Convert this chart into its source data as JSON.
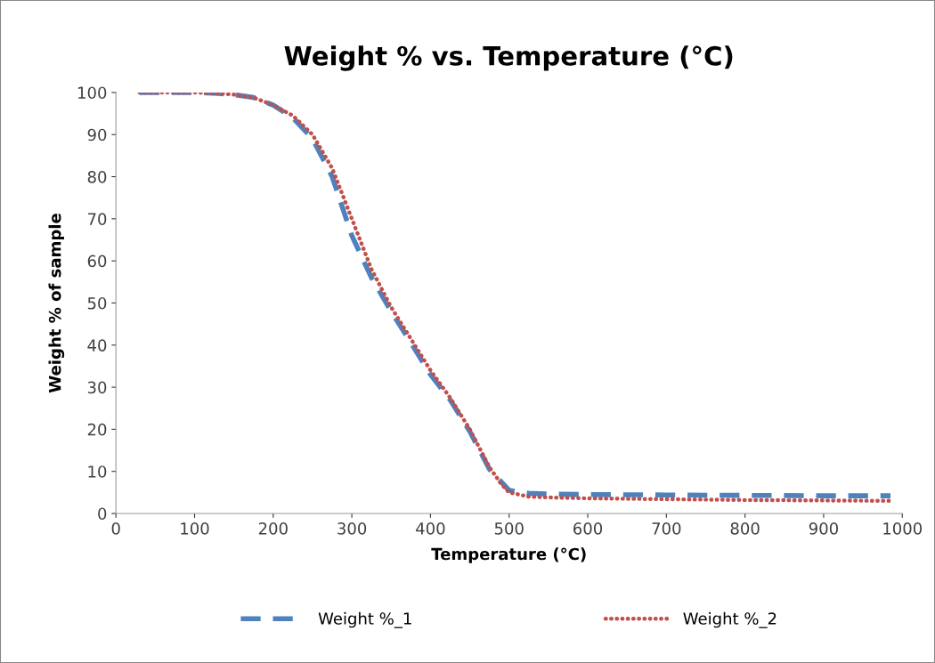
{
  "chart_data": {
    "type": "line",
    "title": "Weight % vs. Temperature (°C)",
    "xlabel": "Temperature (°C)",
    "ylabel": "Weight % of sample",
    "xlim": [
      0,
      1000
    ],
    "xticks": [
      0,
      100,
      200,
      300,
      400,
      500,
      600,
      700,
      800,
      900,
      1000
    ],
    "ylim": [
      0,
      100
    ],
    "yticks": [
      0,
      10,
      20,
      30,
      40,
      50,
      60,
      70,
      80,
      90,
      100
    ],
    "grid": false,
    "legend": "bottom",
    "marker": "none",
    "series": [
      {
        "name": "Weight %_1",
        "color": "#4f81bd",
        "line_style": "dashed",
        "x": [
          30,
          60,
          100,
          130,
          150,
          175,
          200,
          225,
          250,
          275,
          300,
          325,
          350,
          375,
          400,
          425,
          450,
          475,
          500,
          525,
          550,
          600,
          700,
          800,
          900,
          985
        ],
        "values": [
          100,
          100,
          100,
          99.8,
          99.5,
          98.8,
          97,
          94,
          89,
          80,
          66,
          56,
          48,
          40.6,
          33,
          27,
          19.5,
          10.5,
          5.5,
          4.8,
          4.6,
          4.5,
          4.4,
          4.3,
          4.2,
          4.2
        ]
      },
      {
        "name": "Weight %_2",
        "color": "#c0504d",
        "line_style": "dotted",
        "x": [
          30,
          60,
          100,
          130,
          150,
          175,
          200,
          225,
          250,
          275,
          300,
          325,
          350,
          375,
          400,
          425,
          450,
          475,
          490,
          500,
          525,
          550,
          600,
          700,
          800,
          900,
          985
        ],
        "values": [
          100,
          100,
          100,
          99.8,
          99.5,
          98.8,
          97,
          94.5,
          90,
          82,
          70,
          58,
          49,
          41.5,
          34,
          27.5,
          20,
          11,
          7,
          5,
          4,
          3.8,
          3.6,
          3.4,
          3.2,
          3.1,
          3
        ]
      }
    ]
  }
}
